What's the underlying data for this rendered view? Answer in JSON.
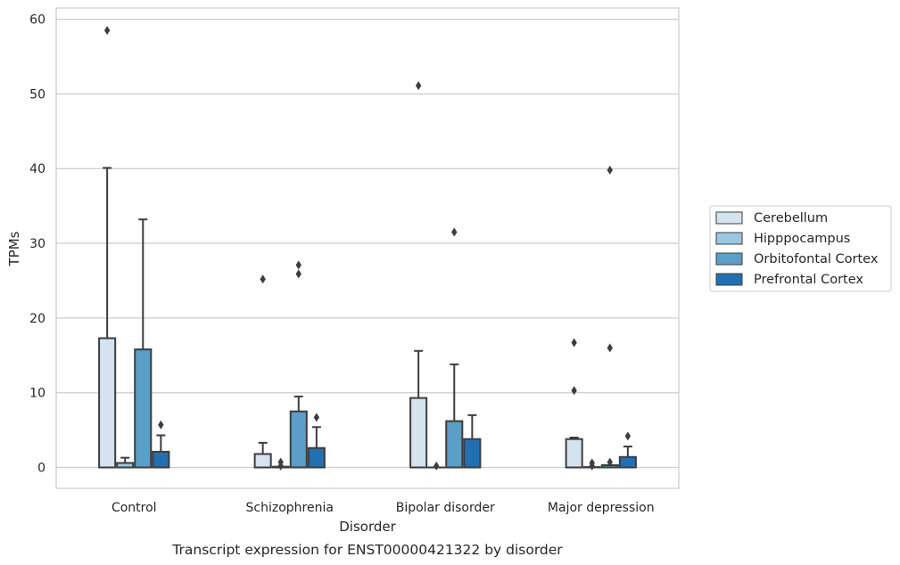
{
  "chart_data": {
    "type": "box",
    "title": "",
    "caption": "Transcript expression for ENST00000421322 by disorder",
    "xlabel": "Disorder",
    "ylabel": "TPMs",
    "ylim": [
      -2.8,
      61.5
    ],
    "yticks": [
      0,
      10,
      20,
      30,
      40,
      50,
      60
    ],
    "grid": true,
    "legend_placement": "right",
    "categories": [
      "Control",
      "Schizophrenia",
      "Bipolar disorder",
      "Major depression"
    ],
    "series": [
      {
        "name": "Cerebellum",
        "color": "#d5e3f1",
        "boxes": [
          {
            "q1": 0,
            "median": 0,
            "q3": 17.3,
            "whisker_low": 0,
            "whisker_high": 40.1,
            "outliers": [
              58.5
            ]
          },
          {
            "q1": 0,
            "median": 0,
            "q3": 1.8,
            "whisker_low": 0,
            "whisker_high": 3.3,
            "outliers": [
              25.2
            ]
          },
          {
            "q1": 0,
            "median": 0,
            "q3": 9.3,
            "whisker_low": 0,
            "whisker_high": 15.6,
            "outliers": [
              51.1
            ]
          },
          {
            "q1": 0,
            "median": 0,
            "q3": 3.8,
            "whisker_low": 0,
            "whisker_high": 4.0,
            "outliers": [
              10.3,
              16.7
            ]
          }
        ]
      },
      {
        "name": "Hipppocampus",
        "color": "#9ac8e0",
        "boxes": [
          {
            "q1": 0,
            "median": 0,
            "q3": 0.6,
            "whisker_low": 0,
            "whisker_high": 1.3,
            "outliers": []
          },
          {
            "q1": 0,
            "median": 0,
            "q3": 0.1,
            "whisker_low": 0,
            "whisker_high": 0.1,
            "outliers": [
              0.2,
              0.7
            ]
          },
          {
            "q1": 0,
            "median": 0,
            "q3": 0,
            "whisker_low": 0,
            "whisker_high": 0,
            "outliers": [
              0.2
            ]
          },
          {
            "q1": 0,
            "median": 0,
            "q3": 0.05,
            "whisker_low": 0,
            "whisker_high": 0.05,
            "outliers": [
              0.2,
              0.6
            ]
          }
        ]
      },
      {
        "name": "Orbitofontal Cortex",
        "color": "#5a9ec9",
        "boxes": [
          {
            "q1": 0,
            "median": 0,
            "q3": 15.8,
            "whisker_low": 0,
            "whisker_high": 33.2,
            "outliers": []
          },
          {
            "q1": 0,
            "median": 0,
            "q3": 7.5,
            "whisker_low": 0,
            "whisker_high": 9.5,
            "outliers": [
              25.9,
              27.1
            ]
          },
          {
            "q1": 0,
            "median": 0,
            "q3": 6.2,
            "whisker_low": 0,
            "whisker_high": 13.8,
            "outliers": [
              31.5
            ]
          },
          {
            "q1": 0,
            "median": 0,
            "q3": 0.3,
            "whisker_low": 0,
            "whisker_high": 0.3,
            "outliers": [
              0.7,
              16.0,
              39.8
            ]
          }
        ]
      },
      {
        "name": "Prefrontal Cortex",
        "color": "#2270b4",
        "boxes": [
          {
            "q1": 0,
            "median": 0,
            "q3": 2.1,
            "whisker_low": 0,
            "whisker_high": 4.3,
            "outliers": [
              5.7
            ]
          },
          {
            "q1": 0,
            "median": 0,
            "q3": 2.6,
            "whisker_low": 0,
            "whisker_high": 5.4,
            "outliers": [
              6.7
            ]
          },
          {
            "q1": 0,
            "median": 0,
            "q3": 3.8,
            "whisker_low": 0,
            "whisker_high": 7.0,
            "outliers": []
          },
          {
            "q1": 0,
            "median": 0,
            "q3": 1.4,
            "whisker_low": 0,
            "whisker_high": 2.8,
            "outliers": [
              4.2
            ]
          }
        ]
      }
    ]
  }
}
